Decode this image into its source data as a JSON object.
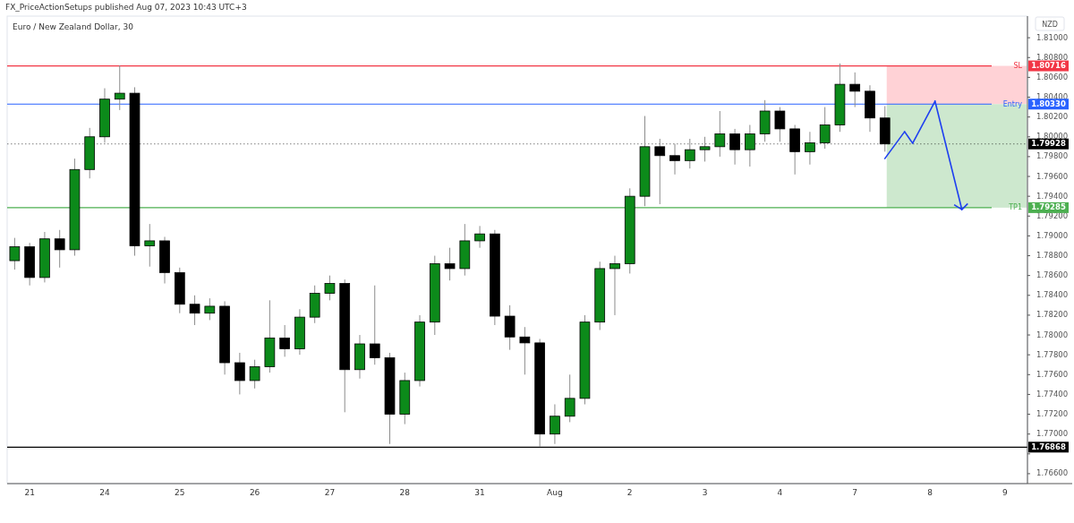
{
  "chart_data": {
    "type": "candlestick",
    "title": "Euro / New Zealand Dollar, 30",
    "annotations": [
      "FX_PriceActionSetups published Aug 07, 2023 10:43 UTC+3",
      "NZD",
      "1.80716",
      "1.80330",
      "1.79928",
      "1.79285",
      "1.76868"
    ],
    "categories": [
      null,
      "21",
      null,
      null,
      null,
      null,
      "24",
      null,
      null,
      null,
      null,
      "25",
      null,
      null,
      null,
      null,
      "26",
      null,
      null,
      null,
      null,
      "27",
      null,
      null,
      null,
      null,
      "28",
      null,
      null,
      null,
      null,
      "31",
      null,
      null,
      null,
      null,
      "Aug",
      null,
      null,
      null,
      null,
      "2",
      null,
      null,
      null,
      null,
      "3",
      null,
      null,
      null,
      null,
      "4",
      null,
      null,
      null,
      null,
      "7",
      null,
      null,
      null,
      null,
      "8",
      null,
      null,
      null,
      null,
      "9",
      null
    ],
    "ohlc": [
      [
        1.7875,
        1.7898,
        1.7866,
        1.7889
      ],
      [
        1.7889,
        1.7893,
        1.785,
        1.7858
      ],
      [
        1.7858,
        1.7904,
        1.7853,
        1.7897
      ],
      [
        1.7897,
        1.7906,
        1.7868,
        1.7886
      ],
      [
        1.7886,
        1.7978,
        1.788,
        1.7967
      ],
      [
        1.7967,
        1.8009,
        1.7958,
        1.8
      ],
      [
        1.8,
        1.8049,
        1.7994,
        1.8038
      ],
      [
        1.8038,
        1.8072,
        1.8027,
        1.8044
      ],
      [
        1.8044,
        1.805,
        1.788,
        1.789
      ],
      [
        1.789,
        1.7912,
        1.7869,
        1.7895
      ],
      [
        1.7895,
        1.7899,
        1.7852,
        1.7863
      ],
      [
        1.7863,
        1.7868,
        1.7822,
        1.7831
      ],
      [
        1.7831,
        1.784,
        1.781,
        1.7822
      ],
      [
        1.7822,
        1.7837,
        1.7815,
        1.7829
      ],
      [
        1.7829,
        1.7834,
        1.776,
        1.7772
      ],
      [
        1.7772,
        1.7782,
        1.774,
        1.7754
      ],
      [
        1.7754,
        1.7775,
        1.7746,
        1.7768
      ],
      [
        1.7768,
        1.7835,
        1.7762,
        1.7797
      ],
      [
        1.7797,
        1.781,
        1.7778,
        1.7786
      ],
      [
        1.7786,
        1.7826,
        1.778,
        1.7818
      ],
      [
        1.7818,
        1.785,
        1.7812,
        1.7842
      ],
      [
        1.7842,
        1.786,
        1.7835,
        1.7852
      ],
      [
        1.7852,
        1.7856,
        1.7722,
        1.7765
      ],
      [
        1.7765,
        1.78,
        1.7756,
        1.7791
      ],
      [
        1.7791,
        1.785,
        1.777,
        1.7777
      ],
      [
        1.7777,
        1.7782,
        1.769,
        1.772
      ],
      [
        1.772,
        1.7762,
        1.771,
        1.7754
      ],
      [
        1.7754,
        1.782,
        1.7748,
        1.7813
      ],
      [
        1.7813,
        1.788,
        1.78,
        1.7872
      ],
      [
        1.7872,
        1.7888,
        1.7855,
        1.7867
      ],
      [
        1.7867,
        1.7912,
        1.786,
        1.7895
      ],
      [
        1.7895,
        1.791,
        1.7888,
        1.7902
      ],
      [
        1.7902,
        1.7906,
        1.781,
        1.7819
      ],
      [
        1.7819,
        1.783,
        1.7785,
        1.7798
      ],
      [
        1.7798,
        1.7808,
        1.776,
        1.7792
      ],
      [
        1.7792,
        1.7796,
        1.7687,
        1.77
      ],
      [
        1.77,
        1.773,
        1.769,
        1.7718
      ],
      [
        1.7718,
        1.776,
        1.7712,
        1.7736
      ],
      [
        1.7736,
        1.782,
        1.773,
        1.7813
      ],
      [
        1.7813,
        1.7874,
        1.7805,
        1.7867
      ],
      [
        1.7867,
        1.788,
        1.782,
        1.7872
      ],
      [
        1.7872,
        1.7948,
        1.7862,
        1.794
      ],
      [
        1.794,
        1.8021,
        1.793,
        1.799
      ],
      [
        1.799,
        1.7998,
        1.7932,
        1.7981
      ],
      [
        1.7981,
        1.7993,
        1.7962,
        1.7976
      ],
      [
        1.7976,
        1.7998,
        1.7968,
        1.7987
      ],
      [
        1.7987,
        1.8,
        1.7975,
        1.799
      ],
      [
        1.799,
        1.8026,
        1.798,
        1.8003
      ],
      [
        1.8003,
        1.8008,
        1.7972,
        1.7987
      ],
      [
        1.7987,
        1.8012,
        1.797,
        1.8003
      ],
      [
        1.8003,
        1.8037,
        1.7995,
        1.8026
      ],
      [
        1.8026,
        1.803,
        1.7995,
        1.8008
      ],
      [
        1.8008,
        1.8012,
        1.7962,
        1.7985
      ],
      [
        1.7985,
        1.8005,
        1.7972,
        1.7994
      ],
      [
        1.7994,
        1.803,
        1.7988,
        1.8012
      ],
      [
        1.8012,
        1.8074,
        1.8005,
        1.8053
      ],
      [
        1.8053,
        1.8065,
        1.803,
        1.8046
      ],
      [
        1.8046,
        1.8052,
        1.8005,
        1.8019
      ],
      [
        1.8019,
        1.8031,
        1.7985,
        1.79928
      ],
      null,
      null,
      null,
      null,
      null,
      null,
      null,
      null,
      null
    ],
    "ylim": [
      1.765,
      1.812
    ],
    "yticks": [
      {
        "value": 1.766,
        "label": "1.76600"
      },
      {
        "value": 1.768,
        "label": null
      },
      {
        "value": 1.77,
        "label": "1.77000"
      },
      {
        "value": 1.772,
        "label": "1.77200"
      },
      {
        "value": 1.774,
        "label": "1.77400"
      },
      {
        "value": 1.776,
        "label": "1.77600"
      },
      {
        "value": 1.778,
        "label": "1.77800"
      },
      {
        "value": 1.78,
        "label": "1.78000"
      },
      {
        "value": 1.782,
        "label": "1.78200"
      },
      {
        "value": 1.784,
        "label": "1.78400"
      },
      {
        "value": 1.786,
        "label": "1.78600"
      },
      {
        "value": 1.788,
        "label": "1.78800"
      },
      {
        "value": 1.79,
        "label": "1.79000"
      },
      {
        "value": 1.792,
        "label": "1.79200"
      },
      {
        "value": 1.794,
        "label": "1.79400"
      },
      {
        "value": 1.796,
        "label": "1.79600"
      },
      {
        "value": 1.798,
        "label": "1.79800"
      },
      {
        "value": 1.8,
        "label": "1.80000"
      },
      {
        "value": 1.802,
        "label": "1.80200"
      },
      {
        "value": 1.804,
        "label": "1.80400"
      },
      {
        "value": 1.806,
        "label": "1.80600"
      },
      {
        "value": 1.808,
        "label": "1.80800"
      },
      {
        "value": 1.81,
        "label": "1.81000"
      }
    ],
    "bands": [
      {
        "axis": "y",
        "from": 1.8033,
        "to": 1.80716,
        "color": "#ffcdd2"
      },
      {
        "axis": "y",
        "from": 1.79285,
        "to": 1.8033,
        "color": "#c8e6c9"
      }
    ],
    "ref_lines": [
      {
        "axis": "y",
        "value": 1.80716,
        "label": "SL",
        "color": "#f23645",
        "line_style": "solid"
      },
      {
        "axis": "y",
        "value": 1.8033,
        "label": "Entry",
        "color": "#2962ff",
        "line_style": "solid"
      },
      {
        "axis": "y",
        "value": 1.79928,
        "color": "#000000",
        "line_style": "dotted"
      },
      {
        "axis": "y",
        "value": 1.79285,
        "label": "TP1",
        "color": "#4caf50",
        "line_style": "solid"
      },
      {
        "axis": "y",
        "value": 1.76868,
        "color": "#000000",
        "line_style": "solid"
      }
    ]
  }
}
